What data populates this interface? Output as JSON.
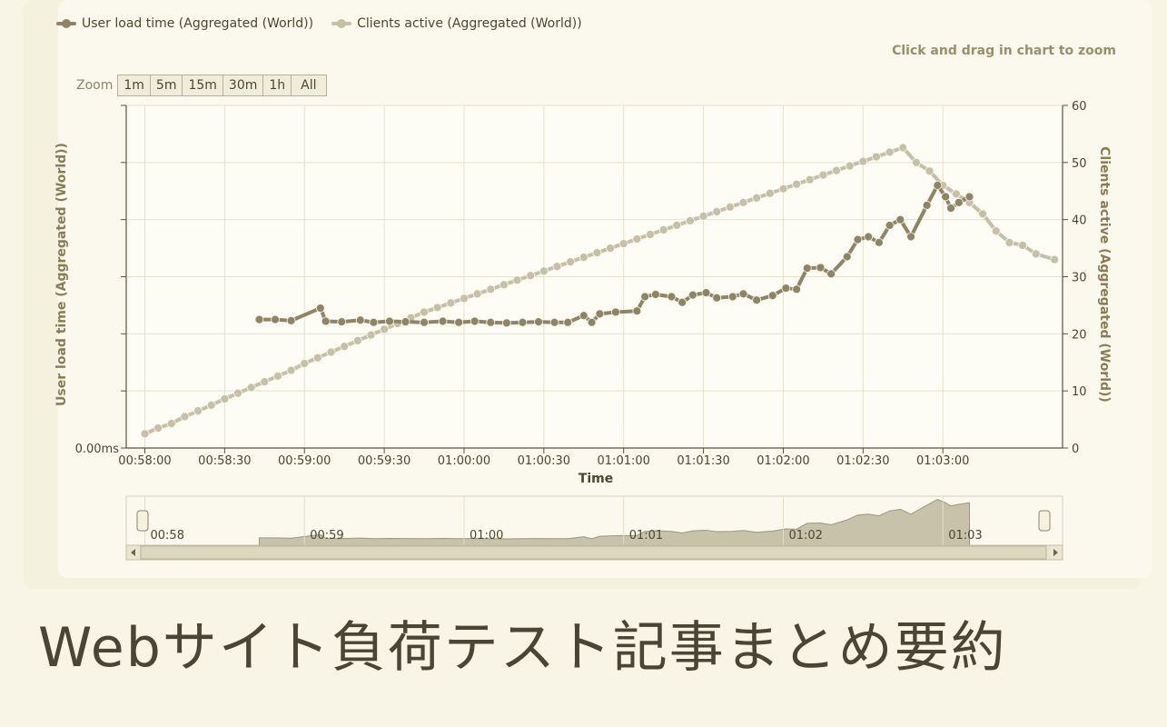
{
  "legend": {
    "series1": "User load time (Aggregated (World))",
    "series2": "Clients active (Aggregated (World))"
  },
  "hint": "Click and drag in chart to zoom",
  "zoom": {
    "label": "Zoom",
    "buttons": [
      "1m",
      "5m",
      "15m",
      "30m",
      "1h",
      "All"
    ]
  },
  "caption": "Webサイト負荷テスト記事まとめ要約",
  "chart_data": {
    "type": "line",
    "xlabel": "Time",
    "ylabel_left": "User load time (Aggregated (World))",
    "ylabel_right": "Clients active (Aggregated (World))",
    "x_tick_labels": [
      "00:58:00",
      "00:58:30",
      "00:59:00",
      "00:59:30",
      "01:00:00",
      "01:00:30",
      "01:01:00",
      "01:01:30",
      "01:02:00",
      "01:02:30",
      "01:03:00"
    ],
    "y_left_tick_labels": [
      "0.00ms"
    ],
    "y_right_ticks": [
      0,
      10,
      20,
      30,
      40,
      50,
      60
    ],
    "y_right_range": [
      0,
      60
    ],
    "grid": true,
    "legend_position": "top-left",
    "colors": {
      "series1": "#8f8464",
      "series2": "#c7bfa6"
    },
    "series": [
      {
        "name": "User load time (Aggregated (World))",
        "axis": "left",
        "points": [
          [
            "00:58:43",
            22.5
          ],
          [
            "00:58:49",
            22.5
          ],
          [
            "00:58:55",
            22.3
          ],
          [
            "00:59:06",
            24.5
          ],
          [
            "00:59:08",
            22.2
          ],
          [
            "00:59:14",
            22.1
          ],
          [
            "00:59:21",
            22.4
          ],
          [
            "00:59:26",
            22.0
          ],
          [
            "00:59:32",
            22.2
          ],
          [
            "00:59:38",
            22.1
          ],
          [
            "00:59:45",
            22.0
          ],
          [
            "00:59:52",
            22.2
          ],
          [
            "00:59:58",
            22.0
          ],
          [
            "01:00:04",
            22.2
          ],
          [
            "01:00:10",
            22.0
          ],
          [
            "01:00:16",
            21.9
          ],
          [
            "01:00:22",
            22.0
          ],
          [
            "01:00:28",
            22.1
          ],
          [
            "01:00:34",
            22.0
          ],
          [
            "01:00:39",
            22.0
          ],
          [
            "01:00:45",
            23.2
          ],
          [
            "01:00:48",
            22.0
          ],
          [
            "01:00:51",
            23.5
          ],
          [
            "01:00:57",
            23.8
          ],
          [
            "01:01:05",
            24.0
          ],
          [
            "01:01:08",
            26.5
          ],
          [
            "01:01:12",
            26.9
          ],
          [
            "01:01:18",
            26.5
          ],
          [
            "01:01:22",
            25.5
          ],
          [
            "01:01:26",
            26.8
          ],
          [
            "01:01:31",
            27.2
          ],
          [
            "01:01:35",
            26.3
          ],
          [
            "01:01:41",
            26.5
          ],
          [
            "01:01:45",
            27.0
          ],
          [
            "01:01:50",
            25.9
          ],
          [
            "01:01:56",
            26.7
          ],
          [
            "01:02:01",
            28.0
          ],
          [
            "01:02:05",
            27.8
          ],
          [
            "01:02:09",
            31.5
          ],
          [
            "01:02:14",
            31.6
          ],
          [
            "01:02:18",
            30.5
          ],
          [
            "01:02:24",
            33.5
          ],
          [
            "01:02:28",
            36.5
          ],
          [
            "01:02:32",
            37.0
          ],
          [
            "01:02:36",
            36.0
          ],
          [
            "01:02:40",
            39.0
          ],
          [
            "01:02:44",
            40.0
          ],
          [
            "01:02:48",
            37.0
          ],
          [
            "01:02:54",
            42.5
          ],
          [
            "01:02:58",
            46.0
          ],
          [
            "01:03:01",
            44.0
          ],
          [
            "01:03:03",
            42.0
          ],
          [
            "01:03:06",
            43.0
          ],
          [
            "01:03:10",
            44.0
          ]
        ]
      },
      {
        "name": "Clients active (Aggregated (World))",
        "axis": "right",
        "points": [
          [
            "00:58:00",
            2.5
          ],
          [
            "00:58:05",
            3.5
          ],
          [
            "00:58:10",
            4.3
          ],
          [
            "00:58:15",
            5.5
          ],
          [
            "00:58:20",
            6.5
          ],
          [
            "00:58:25",
            7.5
          ],
          [
            "00:58:30",
            8.6
          ],
          [
            "00:58:35",
            9.6
          ],
          [
            "00:58:40",
            10.6
          ],
          [
            "00:58:45",
            11.6
          ],
          [
            "00:58:50",
            12.6
          ],
          [
            "00:58:55",
            13.6
          ],
          [
            "00:59:00",
            14.8
          ],
          [
            "00:59:05",
            15.8
          ],
          [
            "00:59:10",
            16.8
          ],
          [
            "00:59:15",
            17.8
          ],
          [
            "00:59:20",
            18.8
          ],
          [
            "00:59:25",
            19.8
          ],
          [
            "00:59:30",
            20.8
          ],
          [
            "00:59:35",
            21.8
          ],
          [
            "00:59:40",
            22.8
          ],
          [
            "00:59:45",
            23.8
          ],
          [
            "00:59:50",
            24.6
          ],
          [
            "00:59:55",
            25.4
          ],
          [
            "01:00:00",
            26.2
          ],
          [
            "01:00:05",
            27.0
          ],
          [
            "01:00:10",
            27.8
          ],
          [
            "01:00:15",
            28.6
          ],
          [
            "01:00:20",
            29.4
          ],
          [
            "01:00:25",
            30.2
          ],
          [
            "01:00:30",
            31.0
          ],
          [
            "01:00:35",
            31.8
          ],
          [
            "01:00:40",
            32.6
          ],
          [
            "01:00:45",
            33.4
          ],
          [
            "01:00:50",
            34.2
          ],
          [
            "01:00:55",
            35.0
          ],
          [
            "01:01:00",
            35.8
          ],
          [
            "01:01:05",
            36.6
          ],
          [
            "01:01:10",
            37.4
          ],
          [
            "01:01:15",
            38.2
          ],
          [
            "01:01:20",
            39.0
          ],
          [
            "01:01:25",
            39.8
          ],
          [
            "01:01:30",
            40.6
          ],
          [
            "01:01:35",
            41.4
          ],
          [
            "01:01:40",
            42.2
          ],
          [
            "01:01:45",
            43.0
          ],
          [
            "01:01:50",
            43.8
          ],
          [
            "01:01:55",
            44.6
          ],
          [
            "01:02:00",
            45.4
          ],
          [
            "01:02:05",
            46.2
          ],
          [
            "01:02:10",
            47.0
          ],
          [
            "01:02:15",
            47.8
          ],
          [
            "01:02:20",
            48.6
          ],
          [
            "01:02:25",
            49.4
          ],
          [
            "01:02:30",
            50.2
          ],
          [
            "01:02:35",
            51.0
          ],
          [
            "01:02:40",
            51.8
          ],
          [
            "01:02:45",
            52.6
          ],
          [
            "01:02:50",
            50.0
          ],
          [
            "01:02:55",
            48.5
          ],
          [
            "01:03:00",
            46.0
          ],
          [
            "01:03:05",
            44.5
          ],
          [
            "01:03:10",
            43.0
          ],
          [
            "01:03:15",
            41.0
          ],
          [
            "01:03:20",
            38.0
          ],
          [
            "01:03:25",
            36.0
          ],
          [
            "01:03:30",
            35.5
          ],
          [
            "01:03:35",
            34.0
          ],
          [
            "01:03:42",
            33.0
          ]
        ]
      }
    ]
  },
  "navigator": {
    "labels": [
      "00:58",
      "00:59",
      "01:00",
      "01:01",
      "01:02",
      "01:03"
    ]
  }
}
